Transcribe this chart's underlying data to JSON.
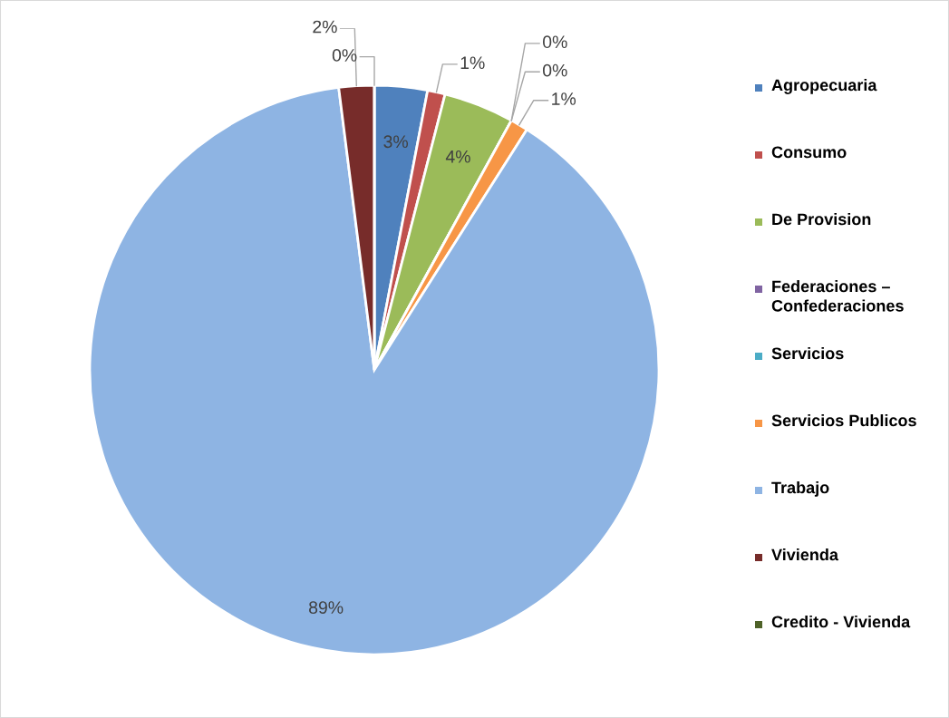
{
  "chart_data": {
    "type": "pie",
    "categories": [
      "Agropecuaria",
      "Consumo",
      "De Provision",
      "Federaciones – Confederaciones",
      "Servicios",
      "Servicios Publicos",
      "Trabajo",
      "Vivienda",
      "Credito - Vivienda"
    ],
    "values": [
      3,
      1,
      4,
      0,
      0,
      1,
      89,
      2,
      0
    ],
    "colors": [
      "#4f81bd",
      "#c0504d",
      "#9bbb59",
      "#8064a2",
      "#4bacc6",
      "#f79646",
      "#8eb4e3",
      "#772c2a",
      "#4f6228"
    ],
    "value_labels": [
      "3%",
      "1%",
      "4%",
      "0%",
      "0%",
      "1%",
      "89%",
      "2%",
      "0%"
    ],
    "legend": "right"
  }
}
